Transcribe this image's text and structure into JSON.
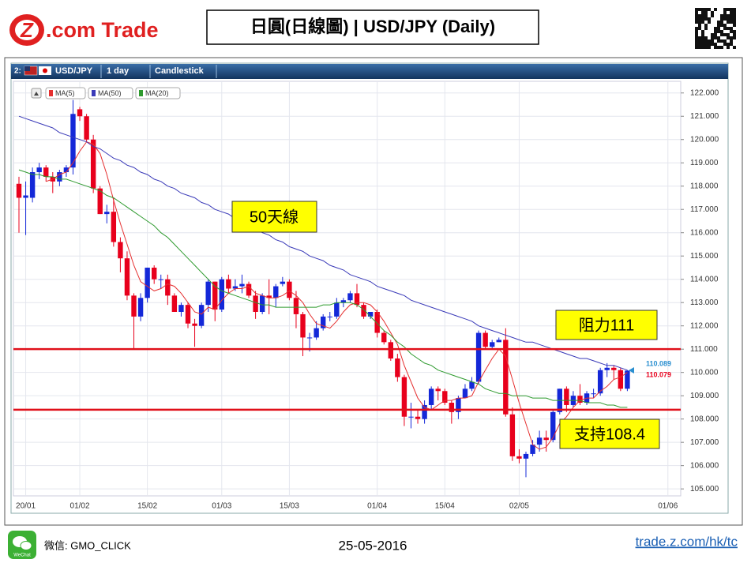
{
  "header": {
    "logo_mark": "Z",
    "logo_text": ".com Trade",
    "title": "日圓(日線圖) | USD/JPY (Daily)"
  },
  "toolbar": {
    "index": "2:",
    "symbol": "USD/JPY",
    "interval": "1 day",
    "style": "Candlestick"
  },
  "chart_data": {
    "type": "candlestick",
    "categories": [
      null,
      "20/01",
      null,
      null,
      null,
      null,
      null,
      null,
      null,
      "01/02",
      null,
      null,
      null,
      null,
      null,
      null,
      null,
      null,
      null,
      "15/02",
      null,
      null,
      null,
      null,
      null,
      null,
      null,
      null,
      null,
      null,
      "01/03",
      null,
      null,
      null,
      null,
      null,
      null,
      null,
      null,
      null,
      "15/03",
      null,
      null,
      null,
      null,
      null,
      null,
      null,
      null,
      null,
      null,
      null,
      null,
      "01/04",
      null,
      null,
      null,
      null,
      null,
      null,
      null,
      null,
      null,
      "15/04",
      null,
      null,
      null,
      null,
      null,
      null,
      null,
      null,
      null,
      null,
      "02/05",
      null,
      null,
      null,
      null,
      null,
      null,
      null,
      null,
      null,
      null,
      null,
      null,
      null,
      null,
      null,
      null,
      null,
      null,
      null,
      null,
      null,
      "01/06"
    ],
    "open": [
      118.1,
      117.5,
      117.5,
      118.6,
      118.8,
      118.4,
      118.2,
      118.6,
      118.8,
      121.3,
      121.0,
      120.0,
      117.9,
      116.8,
      116.9,
      115.6,
      114.9,
      113.3,
      112.4,
      113.2,
      114.5,
      114.0,
      114.0,
      113.3,
      112.6,
      112.9,
      112.1,
      112.0,
      112.9,
      113.9,
      112.7,
      114.0,
      113.6,
      113.7,
      113.8,
      113.3,
      112.6,
      113.3,
      113.2,
      113.8,
      113.9,
      113.2,
      112.5,
      111.5,
      111.5,
      111.9,
      112.4,
      112.4,
      113.0,
      113.1,
      113.4,
      112.9,
      112.4,
      112.6,
      111.7,
      111.3,
      110.6,
      109.8,
      108.1,
      108.1,
      108.0,
      108.6,
      109.3,
      109.2,
      108.7,
      108.3,
      108.9,
      109.3,
      109.6,
      111.7,
      111.1,
      111.3,
      111.4,
      108.2,
      106.4,
      106.3,
      106.5,
      106.9,
      107.2,
      107.1,
      108.3,
      109.3,
      108.6,
      109.0,
      108.7,
      109.1,
      109.1,
      110.1,
      110.2,
      110.1,
      109.3,
      null,
      null,
      null,
      null,
      null,
      null
    ],
    "high": [
      118.4,
      118.2,
      118.8,
      119.0,
      118.9,
      118.6,
      118.7,
      118.9,
      121.7,
      121.4,
      121.1,
      120.2,
      118.0,
      117.2,
      117.5,
      115.8,
      115.2,
      113.4,
      113.4,
      114.5,
      114.6,
      114.2,
      114.2,
      113.4,
      113.0,
      113.0,
      112.3,
      113.0,
      114.0,
      113.9,
      114.1,
      114.2,
      114.0,
      114.2,
      113.9,
      113.5,
      113.4,
      114.0,
      113.8,
      114.1,
      114.0,
      113.5,
      112.6,
      111.7,
      112.2,
      112.5,
      112.6,
      113.2,
      113.2,
      113.5,
      113.8,
      113.0,
      112.6,
      112.7,
      111.8,
      111.4,
      110.8,
      109.9,
      108.7,
      108.4,
      108.8,
      109.4,
      109.4,
      109.3,
      108.8,
      109.0,
      109.5,
      109.8,
      111.8,
      111.8,
      111.4,
      111.5,
      111.9,
      108.5,
      106.7,
      106.6,
      107.1,
      107.5,
      107.5,
      108.4,
      109.3,
      109.4,
      109.2,
      109.5,
      109.2,
      109.3,
      110.2,
      110.4,
      110.3,
      110.2,
      110.1,
      null,
      null,
      null,
      null,
      null,
      null
    ],
    "low": [
      116.0,
      115.9,
      117.3,
      118.3,
      118.2,
      117.7,
      118.0,
      118.4,
      118.5,
      120.8,
      119.9,
      117.7,
      116.8,
      116.4,
      115.4,
      114.3,
      113.1,
      111.0,
      112.2,
      113.0,
      113.8,
      113.6,
      112.9,
      112.6,
      112.4,
      111.9,
      111.1,
      111.9,
      112.6,
      112.2,
      112.6,
      113.4,
      113.5,
      113.4,
      113.2,
      112.3,
      112.5,
      112.5,
      112.8,
      113.7,
      113.1,
      111.9,
      110.7,
      110.9,
      111.4,
      111.8,
      112.2,
      112.3,
      112.8,
      113.0,
      112.8,
      112.3,
      112.3,
      111.5,
      111.2,
      110.5,
      109.6,
      107.7,
      107.6,
      107.8,
      107.8,
      108.4,
      108.8,
      108.6,
      107.8,
      108.0,
      108.9,
      109.2,
      109.5,
      111.0,
      111.0,
      111.3,
      108.1,
      106.2,
      106.1,
      105.5,
      106.4,
      106.6,
      106.6,
      107.0,
      108.2,
      108.3,
      108.5,
      108.6,
      108.6,
      108.9,
      109.0,
      109.8,
      109.7,
      109.2,
      109.2,
      null,
      null,
      null,
      null,
      null,
      null
    ],
    "close": [
      117.5,
      117.6,
      118.6,
      118.8,
      118.4,
      118.2,
      118.6,
      118.8,
      121.1,
      121.0,
      120.0,
      117.9,
      116.8,
      116.9,
      115.6,
      114.9,
      113.3,
      112.4,
      113.2,
      114.5,
      114.0,
      114.0,
      113.3,
      112.6,
      112.9,
      112.1,
      112.0,
      112.9,
      113.9,
      112.7,
      114.0,
      113.6,
      113.7,
      113.8,
      113.3,
      112.6,
      113.3,
      113.2,
      113.7,
      113.9,
      113.2,
      112.5,
      111.5,
      111.5,
      111.9,
      112.4,
      112.4,
      113.0,
      113.1,
      113.4,
      112.9,
      112.4,
      112.6,
      111.7,
      111.3,
      110.6,
      109.8,
      108.1,
      108.1,
      108.0,
      108.6,
      109.3,
      109.2,
      108.7,
      108.3,
      108.9,
      109.3,
      109.6,
      111.7,
      111.1,
      111.3,
      111.4,
      108.2,
      106.4,
      106.3,
      106.5,
      106.9,
      107.2,
      107.1,
      108.3,
      109.3,
      108.6,
      109.0,
      108.7,
      109.1,
      109.1,
      110.1,
      110.2,
      110.1,
      109.3,
      110.08,
      null,
      null,
      null,
      null,
      null,
      null
    ],
    "up_color": "#1428d8",
    "down_color": "#e8001c",
    "lines": [
      {
        "name": "MA(5)",
        "color": "#e53030",
        "values": [
          null,
          null,
          null,
          null,
          118.2,
          118.3,
          118.5,
          118.6,
          119.0,
          119.5,
          119.9,
          119.8,
          119.4,
          118.5,
          117.4,
          116.4,
          115.5,
          114.6,
          113.9,
          113.7,
          113.5,
          113.6,
          113.8,
          113.7,
          113.4,
          113.0,
          112.6,
          112.5,
          112.8,
          112.7,
          113.1,
          113.4,
          113.6,
          113.6,
          113.7,
          113.4,
          113.3,
          113.2,
          113.2,
          113.3,
          113.5,
          113.3,
          113.0,
          112.5,
          112.1,
          112.0,
          111.9,
          112.2,
          112.6,
          112.9,
          113.0,
          113.0,
          112.9,
          112.6,
          112.2,
          111.7,
          111.2,
          110.3,
          109.6,
          108.9,
          108.5,
          108.4,
          108.6,
          108.8,
          108.8,
          108.9,
          108.9,
          109.0,
          109.6,
          110.1,
          110.6,
          111.0,
          110.7,
          109.7,
          108.7,
          107.8,
          106.9,
          106.7,
          106.8,
          107.2,
          107.8,
          108.1,
          108.5,
          108.8,
          108.9,
          108.9,
          109.2,
          109.4,
          109.7,
          109.8,
          110.0,
          null,
          null,
          null,
          null,
          null,
          null
        ]
      },
      {
        "name": "MA(50)",
        "color": "#3a3ab8",
        "values": [
          121.0,
          120.9,
          120.8,
          120.7,
          120.6,
          120.5,
          120.3,
          120.2,
          120.1,
          120.0,
          119.9,
          119.7,
          119.6,
          119.4,
          119.2,
          119.1,
          118.9,
          118.8,
          118.6,
          118.5,
          118.3,
          118.2,
          118.0,
          117.9,
          117.7,
          117.6,
          117.5,
          117.3,
          117.2,
          117.0,
          116.9,
          116.8,
          116.6,
          116.5,
          116.3,
          116.2,
          116.0,
          115.9,
          115.7,
          115.6,
          115.4,
          115.3,
          115.2,
          115.0,
          114.9,
          114.8,
          114.6,
          114.5,
          114.4,
          114.2,
          114.1,
          114.0,
          113.9,
          113.7,
          113.6,
          113.5,
          113.4,
          113.3,
          113.1,
          113.0,
          112.9,
          112.8,
          112.7,
          112.6,
          112.5,
          112.4,
          112.3,
          112.2,
          112.0,
          111.9,
          111.8,
          111.7,
          111.6,
          111.5,
          111.4,
          111.3,
          111.3,
          111.2,
          111.1,
          111.0,
          110.9,
          110.8,
          110.7,
          110.6,
          110.6,
          110.5,
          110.4,
          110.3,
          110.3,
          110.2,
          110.1,
          null,
          null,
          null,
          null,
          null,
          null
        ]
      },
      {
        "name": "MA(20)",
        "color": "#2e9a2e",
        "values": [
          118.7,
          118.6,
          118.5,
          118.5,
          118.4,
          118.4,
          118.3,
          118.3,
          118.2,
          118.1,
          118.0,
          117.9,
          117.8,
          117.6,
          117.5,
          117.3,
          117.1,
          116.9,
          116.7,
          116.5,
          116.3,
          116.0,
          115.8,
          115.5,
          115.2,
          114.9,
          114.6,
          114.3,
          114.0,
          113.7,
          113.5,
          113.4,
          113.3,
          113.2,
          113.1,
          113.0,
          112.9,
          112.9,
          112.8,
          112.8,
          112.8,
          112.8,
          112.8,
          112.8,
          112.8,
          112.9,
          112.9,
          113.0,
          113.0,
          113.0,
          112.9,
          112.7,
          112.4,
          112.1,
          111.8,
          111.6,
          111.3,
          111.1,
          110.8,
          110.6,
          110.4,
          110.3,
          110.1,
          110.0,
          109.9,
          109.8,
          109.7,
          109.6,
          109.5,
          109.3,
          109.2,
          109.1,
          109.1,
          109.0,
          109.0,
          109.0,
          108.9,
          108.9,
          108.9,
          108.8,
          108.8,
          108.8,
          108.8,
          108.8,
          108.7,
          108.7,
          108.7,
          108.6,
          108.6,
          108.5,
          108.5,
          null,
          null,
          null,
          null,
          null,
          null
        ]
      }
    ],
    "ylim": [
      104.7,
      122.5
    ],
    "yticks": [
      {
        "value": 105,
        "label": "105.000"
      },
      {
        "value": 106,
        "label": "106.000"
      },
      {
        "value": 107,
        "label": "107.000"
      },
      {
        "value": 108,
        "label": "108.000"
      },
      {
        "value": 109,
        "label": "109.000"
      },
      {
        "value": 110,
        "label": "110.000"
      },
      {
        "value": 111,
        "label": "111.000"
      },
      {
        "value": 112,
        "label": "112.000"
      },
      {
        "value": 113,
        "label": "113.000"
      },
      {
        "value": 114,
        "label": "114.000"
      },
      {
        "value": 115,
        "label": "115.000"
      },
      {
        "value": 116,
        "label": "116.000"
      },
      {
        "value": 117,
        "label": "117.000"
      },
      {
        "value": 118,
        "label": "118.000"
      },
      {
        "value": 119,
        "label": "119.000"
      },
      {
        "value": 120,
        "label": "120.000"
      },
      {
        "value": 121,
        "label": "121.000"
      },
      {
        "value": 122,
        "label": "122.000"
      }
    ],
    "grid": true,
    "last_prices": [
      {
        "value": 110.089,
        "color": "#2a8fd0"
      },
      {
        "value": 110.079,
        "color": "#e8001c"
      }
    ],
    "hlines": [
      {
        "value": 111,
        "color": "#e0101a"
      },
      {
        "value": 108.4,
        "color": "#e0101a"
      }
    ],
    "annotations": [
      {
        "text": "50天線"
      },
      {
        "text": "阻力111"
      },
      {
        "text": "支持108.4"
      }
    ]
  },
  "footer": {
    "wechat_icon": "WeChat",
    "wechat": "微信: GMO_CLICK",
    "date": "25-05-2016",
    "url": "trade.z.com/hk/tc"
  }
}
